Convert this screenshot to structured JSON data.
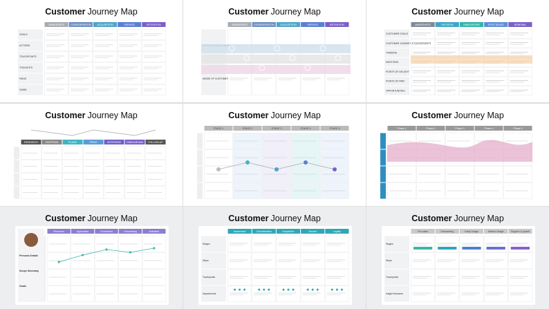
{
  "panels": [
    {
      "title": {
        "bold": "Customer",
        "rest": "Journey Map"
      },
      "stages": [
        "AWARENESS",
        "CONSIDERATION",
        "ACQUISITION",
        "SERVICE",
        "RETENTION"
      ],
      "rows": [
        "GOALS",
        "ACTIONS",
        "TOUCHPOINTS",
        "THOUGHTS",
        "PAINS",
        "GAINS"
      ]
    },
    {
      "title": {
        "bold": "Customer",
        "rest": "Journey Map"
      },
      "stages": [
        "AWARENESS",
        "CONSIDERATION",
        "ACQUISITION",
        "SERVICE",
        "RETENTION"
      ],
      "rows": [
        "EXPECTATIONS & NEEDS",
        "INSIDE OF CUSTOMER"
      ]
    },
    {
      "title": {
        "bold": "Customer",
        "rest": "Journey Map"
      },
      "stages": [
        "AWARENESS",
        "DECISION",
        "ONBOARDING",
        "POST-SALES",
        "RENEWAL"
      ],
      "rows": [
        "CUSTOMER GOALS",
        "CUSTOMER JOURNEY & TOUCHPOINTS",
        "THINKING",
        "EMOTIONS",
        "POINTS OF DELIGHT",
        "POINTS OF PAIN",
        "OPPORTUNITIES"
      ]
    },
    {
      "title": {
        "bold": "Customer",
        "rest": "Journey Map"
      },
      "stages": [
        "RESEARCH",
        "SHOPPING",
        "PLANS",
        "PRICE",
        "INTERVIEW",
        "ONBOARDING",
        "FOLLOW-UP"
      ]
    },
    {
      "title": {
        "bold": "Customer",
        "rest": "Journey Map"
      },
      "stages": [
        "STAGE 1",
        "STAGE 2",
        "STAGE 3",
        "STAGE 4",
        "STAGE 5"
      ]
    },
    {
      "title": {
        "bold": "Customer",
        "rest": "Journey Map"
      },
      "stages": [
        "Phase 1",
        "Phase 2",
        "Phase 3",
        "Phase 4",
        "Phase 5"
      ]
    },
    {
      "title": {
        "bold": "Customer",
        "rest": "Journey Map"
      },
      "stages": [
        "Research",
        "Application",
        "Enrollment",
        "Onboarding",
        "Activated"
      ],
      "side": [
        "Persona Details",
        "Scope Summary",
        "Goals"
      ]
    },
    {
      "title": {
        "bold": "Customer",
        "rest": "Journey Map"
      },
      "stages": [
        "Awareness",
        "Consideration",
        "Acquisition",
        "Service",
        "Loyalty"
      ],
      "rows": [
        "Stages",
        "Steps",
        "Touchpoints",
        "Departments"
      ]
    },
    {
      "title": {
        "bold": "Customer",
        "rest": "Journey Map"
      },
      "stages": [
        "Pre-sales",
        "Onboarding",
        "Early Usage",
        "Mature Usage",
        "Support & Upsell"
      ],
      "rows": [
        "Stages",
        "Steps",
        "Touchpoints",
        "Insight Moments"
      ]
    }
  ]
}
